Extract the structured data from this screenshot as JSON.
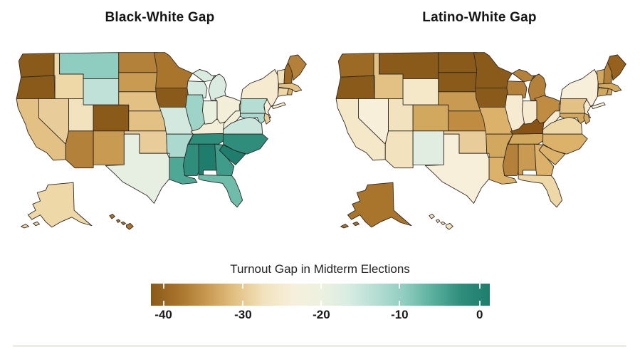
{
  "chart_data": {
    "type": "heatmap",
    "subtype": "us_state_choropleth_pair",
    "values_estimated_from_colors": true,
    "maps": [
      {
        "title": "Black-White Gap",
        "states": {
          "WA": {
            "v": -40,
            "c": "#8a5a1a"
          },
          "OR": {
            "v": -40,
            "c": "#8a5a1a"
          },
          "CA": {
            "v": -31,
            "c": "#e3c184"
          },
          "NV": {
            "v": -30,
            "c": "#e8cd9a"
          },
          "ID": {
            "v": -29,
            "c": "#eed8a8"
          },
          "MT": {
            "v": -12,
            "c": "#8ecdc0"
          },
          "WY": {
            "v": -16,
            "c": "#c0e1d8"
          },
          "UT": {
            "v": -28,
            "c": "#f2e2bd"
          },
          "CO": {
            "v": -40,
            "c": "#8a5a1a"
          },
          "AZ": {
            "v": -36,
            "c": "#b3813a"
          },
          "NM": {
            "v": -34,
            "c": "#c99a52"
          },
          "ND": {
            "v": -36,
            "c": "#b3813a"
          },
          "SD": {
            "v": -34,
            "c": "#c99a52"
          },
          "NE": {
            "v": -31,
            "c": "#e3c184"
          },
          "KS": {
            "v": -31,
            "c": "#e3c184"
          },
          "OK": {
            "v": -30,
            "c": "#e8cd9a"
          },
          "TX": {
            "v": -21,
            "c": "#e6efe2"
          },
          "MN": {
            "v": -37,
            "c": "#a9742c"
          },
          "IA": {
            "v": -40,
            "c": "#8a5a1a"
          },
          "MO": {
            "v": -18,
            "c": "#d3e9e0"
          },
          "AR": {
            "v": -14,
            "c": "#abd9cf"
          },
          "LA": {
            "v": -6,
            "c": "#4fa795"
          },
          "MS": {
            "v": -3,
            "c": "#2f8d7c"
          },
          "AL": {
            "v": 0,
            "c": "#1f7d6e"
          },
          "GA": {
            "v": -5,
            "c": "#3f9b8a"
          },
          "SC": {
            "v": 0,
            "c": "#1f7d6e"
          },
          "NC": {
            "v": -3,
            "c": "#2f8d7c"
          },
          "TN": {
            "v": -3,
            "c": "#2f8d7c"
          },
          "KY": {
            "v": -24,
            "c": "#f2eed8"
          },
          "FL": {
            "v": -9,
            "c": "#6fbcab"
          },
          "WI": {
            "v": -18,
            "c": "#d3e9e0"
          },
          "MI": {
            "v": -19,
            "c": "#daece2"
          },
          "IL": {
            "v": -13,
            "c": "#9ed4c8"
          },
          "IN": {
            "v": -22,
            "c": "#e9f0e0"
          },
          "OH": {
            "v": -24,
            "c": "#f2eed8"
          },
          "VA": {
            "v": -17,
            "c": "#c9e5dc"
          },
          "WV": {
            "v": -24,
            "c": "#f2eed8"
          },
          "PA": {
            "v": -15,
            "c": "#b5ddd3"
          },
          "NY": {
            "v": -26,
            "c": "#f6ead0"
          },
          "VT": {
            "v": -28,
            "c": "#f2e2bd"
          },
          "NH": {
            "v": -38,
            "c": "#9c6a24"
          },
          "ME": {
            "v": -36,
            "c": "#b3813a"
          },
          "MA": {
            "v": -31,
            "c": "#e3c184"
          },
          "CT": {
            "v": -29,
            "c": "#eed8a8"
          },
          "RI": {
            "v": -32,
            "c": "#dcb26a"
          },
          "NJ": {
            "v": -25,
            "c": "#f7efda"
          },
          "DE": {
            "v": -30,
            "c": "#e8cd9a"
          },
          "MD": {
            "v": -14,
            "c": "#abd9cf"
          },
          "AK": {
            "v": -29,
            "c": "#eed8a8"
          },
          "HI": {
            "v": -37,
            "c": "#a9742c"
          }
        }
      },
      {
        "title": "Latino-White Gap",
        "states": {
          "WA": {
            "v": -38,
            "c": "#9c6a24"
          },
          "OR": {
            "v": -40,
            "c": "#8a5a1a"
          },
          "CA": {
            "v": -27,
            "c": "#f5e8c9"
          },
          "NV": {
            "v": -25,
            "c": "#f7efda"
          },
          "ID": {
            "v": -31,
            "c": "#e3c184"
          },
          "MT": {
            "v": -40,
            "c": "#8a5a1a"
          },
          "WY": {
            "v": -27,
            "c": "#f5e8c9"
          },
          "UT": {
            "v": -28,
            "c": "#f2e2bd"
          },
          "CO": {
            "v": -33,
            "c": "#d2a75e"
          },
          "AZ": {
            "v": -28,
            "c": "#f2e2bd"
          },
          "NM": {
            "v": -20,
            "c": "#e1ede1"
          },
          "ND": {
            "v": -40,
            "c": "#8a5a1a"
          },
          "SD": {
            "v": -40,
            "c": "#8a5a1a"
          },
          "NE": {
            "v": -34,
            "c": "#c99a52"
          },
          "KS": {
            "v": -35,
            "c": "#bf8c42"
          },
          "OK": {
            "v": -30,
            "c": "#e8cd9a"
          },
          "TX": {
            "v": -25,
            "c": "#f7efda"
          },
          "MN": {
            "v": -40,
            "c": "#8a5a1a"
          },
          "IA": {
            "v": -40,
            "c": "#8a5a1a"
          },
          "MO": {
            "v": -32,
            "c": "#dcb26a"
          },
          "AR": {
            "v": -33,
            "c": "#d2a75e"
          },
          "LA": {
            "v": -32,
            "c": "#dcb26a"
          },
          "MS": {
            "v": -36,
            "c": "#b3813a"
          },
          "AL": {
            "v": -34,
            "c": "#c99a52"
          },
          "GA": {
            "v": -32,
            "c": "#dcb26a"
          },
          "SC": {
            "v": -32,
            "c": "#dcb26a"
          },
          "NC": {
            "v": -32,
            "c": "#dcb26a"
          },
          "TN": {
            "v": -33,
            "c": "#d2a75e"
          },
          "KY": {
            "v": -40,
            "c": "#8a5316"
          },
          "FL": {
            "v": -29,
            "c": "#eed8a8"
          },
          "WI": {
            "v": -36,
            "c": "#b3813a"
          },
          "MI": {
            "v": -36,
            "c": "#b3813a"
          },
          "IL": {
            "v": -26,
            "c": "#f6ead0"
          },
          "IN": {
            "v": -26,
            "c": "#f6ead0"
          },
          "OH": {
            "v": -35,
            "c": "#bf8c42"
          },
          "VA": {
            "v": -29,
            "c": "#eed8a8"
          },
          "WV": {
            "v": -26,
            "c": "#f6ead0"
          },
          "PA": {
            "v": -31,
            "c": "#e3c184"
          },
          "NY": {
            "v": -25,
            "c": "#f7efda"
          },
          "VT": {
            "v": -33,
            "c": "#d2a75e"
          },
          "NH": {
            "v": -36,
            "c": "#b3813a"
          },
          "ME": {
            "v": -39,
            "c": "#96611d"
          },
          "MA": {
            "v": -33,
            "c": "#d2a75e"
          },
          "CT": {
            "v": -33,
            "c": "#d2a75e"
          },
          "RI": {
            "v": -33,
            "c": "#d2a75e"
          },
          "NJ": {
            "v": -26,
            "c": "#f6ead0"
          },
          "DE": {
            "v": -33,
            "c": "#d2a75e"
          },
          "MD": {
            "v": -33,
            "c": "#d2a75e"
          },
          "AK": {
            "v": -37,
            "c": "#a9742c"
          },
          "HI": {
            "v": -28,
            "c": "#f2e2bd"
          }
        }
      }
    ],
    "colorbar": {
      "label": "Turnout Gap in Midterm Elections",
      "ticks": [
        -40,
        -30,
        -20,
        -10,
        0
      ],
      "range": [
        -42,
        1
      ],
      "gradient": [
        "#8a5a1a",
        "#a9742c",
        "#c99a52",
        "#e3c184",
        "#f2e2bd",
        "#f7efdc",
        "#eef1e0",
        "#d9ece3",
        "#b5ddd3",
        "#8ecdc0",
        "#5aae9c",
        "#2f8d7c",
        "#1f7d6e"
      ]
    }
  }
}
